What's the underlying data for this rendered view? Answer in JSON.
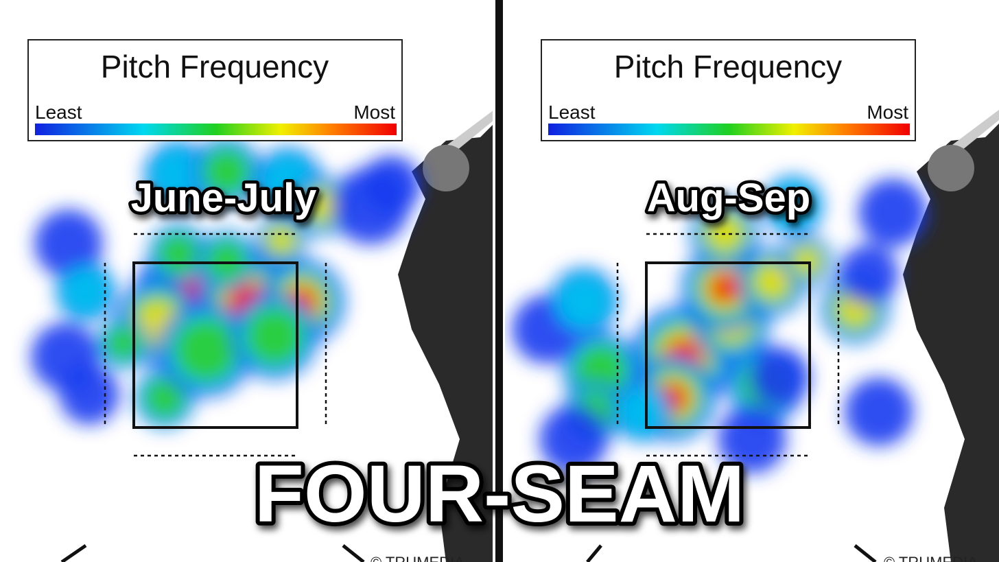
{
  "title": "FOUR-SEAM",
  "panels": [
    {
      "legend": {
        "title": "Pitch Frequency",
        "least": "Least",
        "most": "Most"
      },
      "label": "June-July",
      "credit": "© TRUMEDIA"
    },
    {
      "legend": {
        "title": "Pitch Frequency",
        "least": "Least",
        "most": "Most"
      },
      "label": "Aug-Sep",
      "credit": "© TRUMEDIA"
    }
  ]
}
